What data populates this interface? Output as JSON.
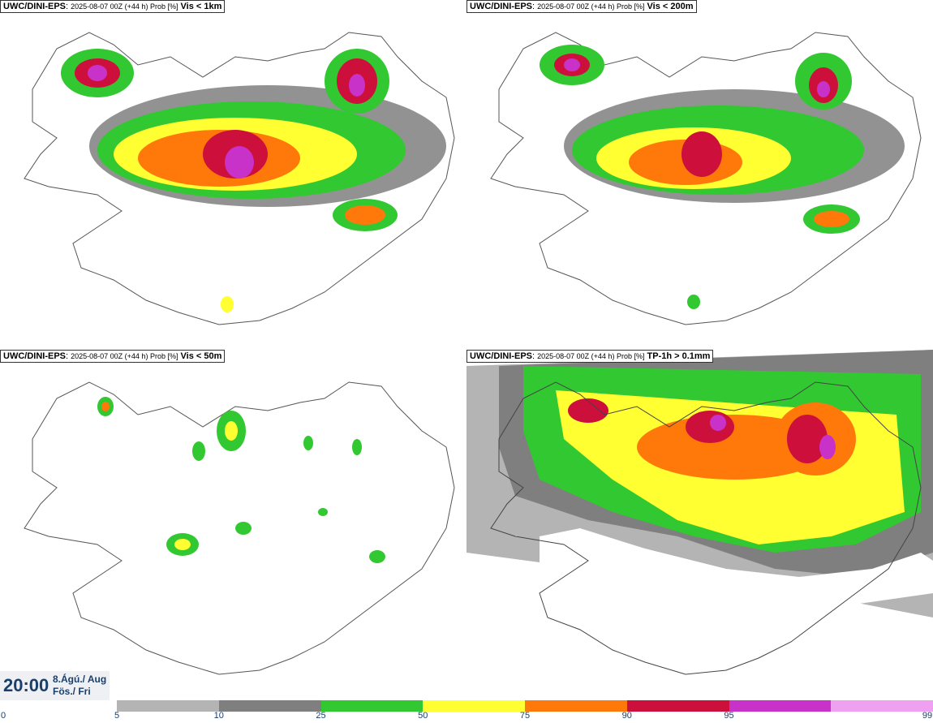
{
  "panels": [
    {
      "source": "UWC/DINI-EPS",
      "meta": "2025-08-07 00Z (+44 h) Prob [%]",
      "variable": "Vis < 1km"
    },
    {
      "source": "UWC/DINI-EPS",
      "meta": "2025-08-07 00Z (+44 h) Prob [%]",
      "variable": "Vis < 200m"
    },
    {
      "source": "UWC/DINI-EPS",
      "meta": "2025-08-07 00Z (+44 h) Prob [%]",
      "variable": "Vis < 50m"
    },
    {
      "source": "UWC/DINI-EPS",
      "meta": "2025-08-07 00Z (+44 h) Prob [%]",
      "variable": "TP-1h > 0.1mm"
    }
  ],
  "valid_time": {
    "time": "20:00",
    "date_line1": "8.Ágú./ Aug",
    "date_line2": "Fös./ Fri"
  },
  "legend": {
    "ticks": [
      "0",
      "5",
      "10",
      "25",
      "50",
      "75",
      "90",
      "95",
      "99"
    ],
    "colors": [
      "#b4b4b4",
      "#7f7f7f",
      "#32c832",
      "#ffff32",
      "#ff780a",
      "#cd0f3c",
      "#c832c8",
      "#f0a0f0"
    ]
  }
}
